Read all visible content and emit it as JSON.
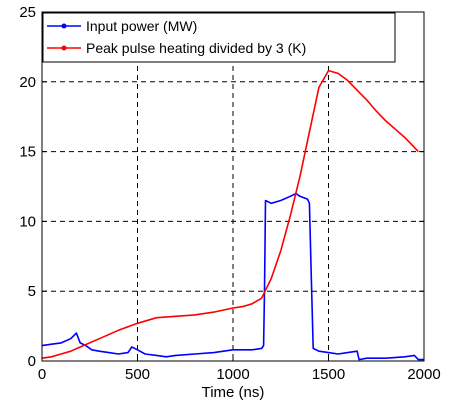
{
  "chart_data": {
    "type": "line",
    "title": "",
    "xlabel": "Time (ns)",
    "ylabel": "",
    "xlim": [
      0,
      2000
    ],
    "ylim": [
      0,
      25
    ],
    "xticks": [
      0,
      500,
      1000,
      1500,
      2000
    ],
    "yticks": [
      0,
      5,
      10,
      15,
      20,
      25
    ],
    "grid": true,
    "legend_position": "top-left",
    "series": [
      {
        "name": "Input power (MW)",
        "color": "#0000ff",
        "x": [
          0,
          50,
          100,
          150,
          180,
          200,
          230,
          260,
          300,
          350,
          400,
          450,
          470,
          500,
          540,
          600,
          650,
          700,
          800,
          900,
          1000,
          1100,
          1150,
          1160,
          1165,
          1170,
          1200,
          1250,
          1300,
          1330,
          1350,
          1390,
          1400,
          1410,
          1420,
          1450,
          1500,
          1550,
          1600,
          1650,
          1660,
          1700,
          1800,
          1900,
          1950,
          1970,
          2000
        ],
        "y": [
          1.1,
          1.2,
          1.3,
          1.6,
          2.0,
          1.3,
          1.1,
          0.8,
          0.7,
          0.6,
          0.5,
          0.6,
          1.0,
          0.8,
          0.5,
          0.4,
          0.3,
          0.4,
          0.5,
          0.6,
          0.8,
          0.8,
          0.9,
          1.1,
          5.0,
          11.5,
          11.3,
          11.5,
          11.8,
          12.0,
          11.8,
          11.6,
          11.3,
          6.0,
          0.9,
          0.7,
          0.6,
          0.5,
          0.6,
          0.7,
          0.1,
          0.2,
          0.2,
          0.3,
          0.4,
          0.1,
          0.1
        ]
      },
      {
        "name": "Peak pulse heating divided by 3 (K)",
        "color": "#ff0000",
        "x": [
          0,
          50,
          100,
          150,
          200,
          300,
          400,
          500,
          600,
          700,
          800,
          900,
          1000,
          1050,
          1100,
          1150,
          1200,
          1250,
          1300,
          1350,
          1400,
          1450,
          1500,
          1550,
          1600,
          1650,
          1700,
          1750,
          1800,
          1850,
          1900,
          1950,
          1970
        ],
        "y": [
          0.2,
          0.3,
          0.5,
          0.7,
          1.0,
          1.6,
          2.2,
          2.7,
          3.1,
          3.2,
          3.3,
          3.5,
          3.8,
          3.9,
          4.1,
          4.5,
          5.9,
          7.9,
          10.4,
          13.2,
          16.4,
          19.6,
          20.8,
          20.6,
          20.1,
          19.4,
          18.7,
          17.9,
          17.2,
          16.6,
          16.0,
          15.3,
          15.0
        ]
      }
    ]
  }
}
